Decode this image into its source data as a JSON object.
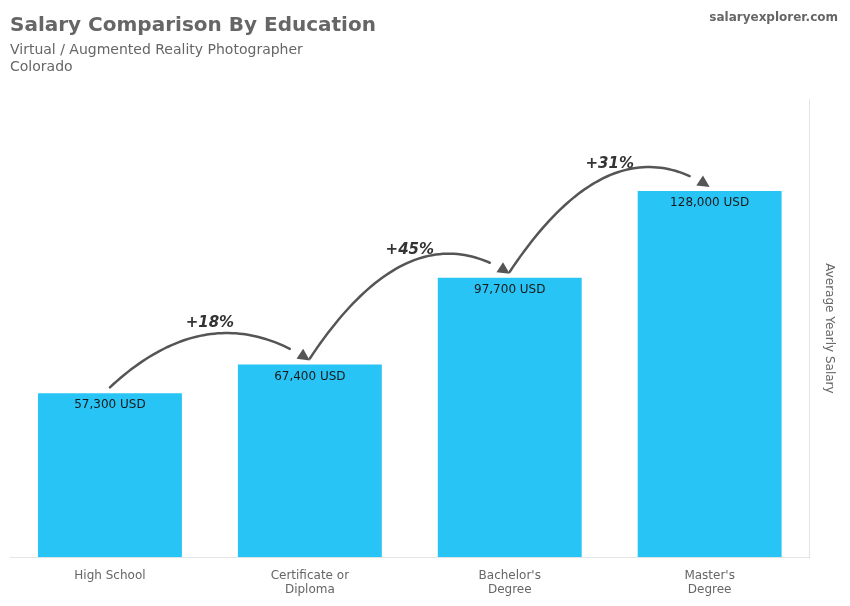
{
  "chart_data": {
    "type": "bar",
    "title": "Salary Comparison By Education",
    "subtitle": [
      "Virtual / Augmented Reality Photographer",
      "Colorado"
    ],
    "ylabel": "Average Yearly Salary",
    "categories": [
      "High School",
      "Certificate or\nDiploma",
      "Bachelor's\nDegree",
      "Master's\nDegree"
    ],
    "values": [
      57300,
      67400,
      97700,
      128000
    ],
    "value_labels": [
      "57,300 USD",
      "67,400 USD",
      "97,700 USD",
      "128,000 USD"
    ],
    "data_labels": true,
    "color": "#29C4F6",
    "ylim": [
      0,
      160000
    ],
    "grid": false,
    "tick_labels": "x",
    "annotations": [
      {
        "text": "+18%",
        "from": "High School",
        "to": "Certificate or\nDiploma"
      },
      {
        "text": "+45%",
        "from": "Certificate or\nDiploma",
        "to": "Bachelor's\nDegree"
      },
      {
        "text": "+31%",
        "from": "Bachelor's\nDegree",
        "to": "Master's\nDegree"
      },
      {
        "text": "salaryexplorer.com"
      }
    ]
  }
}
